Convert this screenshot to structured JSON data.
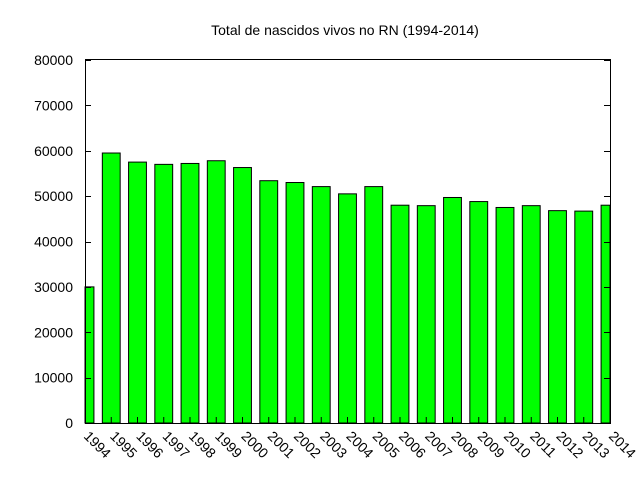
{
  "chart_data": {
    "type": "bar",
    "title": "Total de nascidos vivos no RN (1994-2014)",
    "xlabel": "",
    "ylabel": "",
    "ylim": [
      0,
      80000
    ],
    "yticks": [
      0,
      10000,
      20000,
      30000,
      40000,
      50000,
      60000,
      70000,
      80000
    ],
    "grid": false,
    "legend": "none",
    "bar_color": "#00ff00",
    "categories": [
      "1994",
      "1995",
      "1996",
      "1997",
      "1998",
      "1999",
      "2000",
      "2001",
      "2002",
      "2003",
      "2004",
      "2005",
      "2006",
      "2007",
      "2008",
      "2009",
      "2010",
      "2011",
      "2012",
      "2013",
      "2014"
    ],
    "values": [
      30000,
      59500,
      57500,
      57000,
      57200,
      57800,
      56300,
      53400,
      53000,
      52100,
      50500,
      52100,
      48000,
      47900,
      49700,
      48800,
      47500,
      47900,
      46800,
      46700,
      48000
    ]
  }
}
